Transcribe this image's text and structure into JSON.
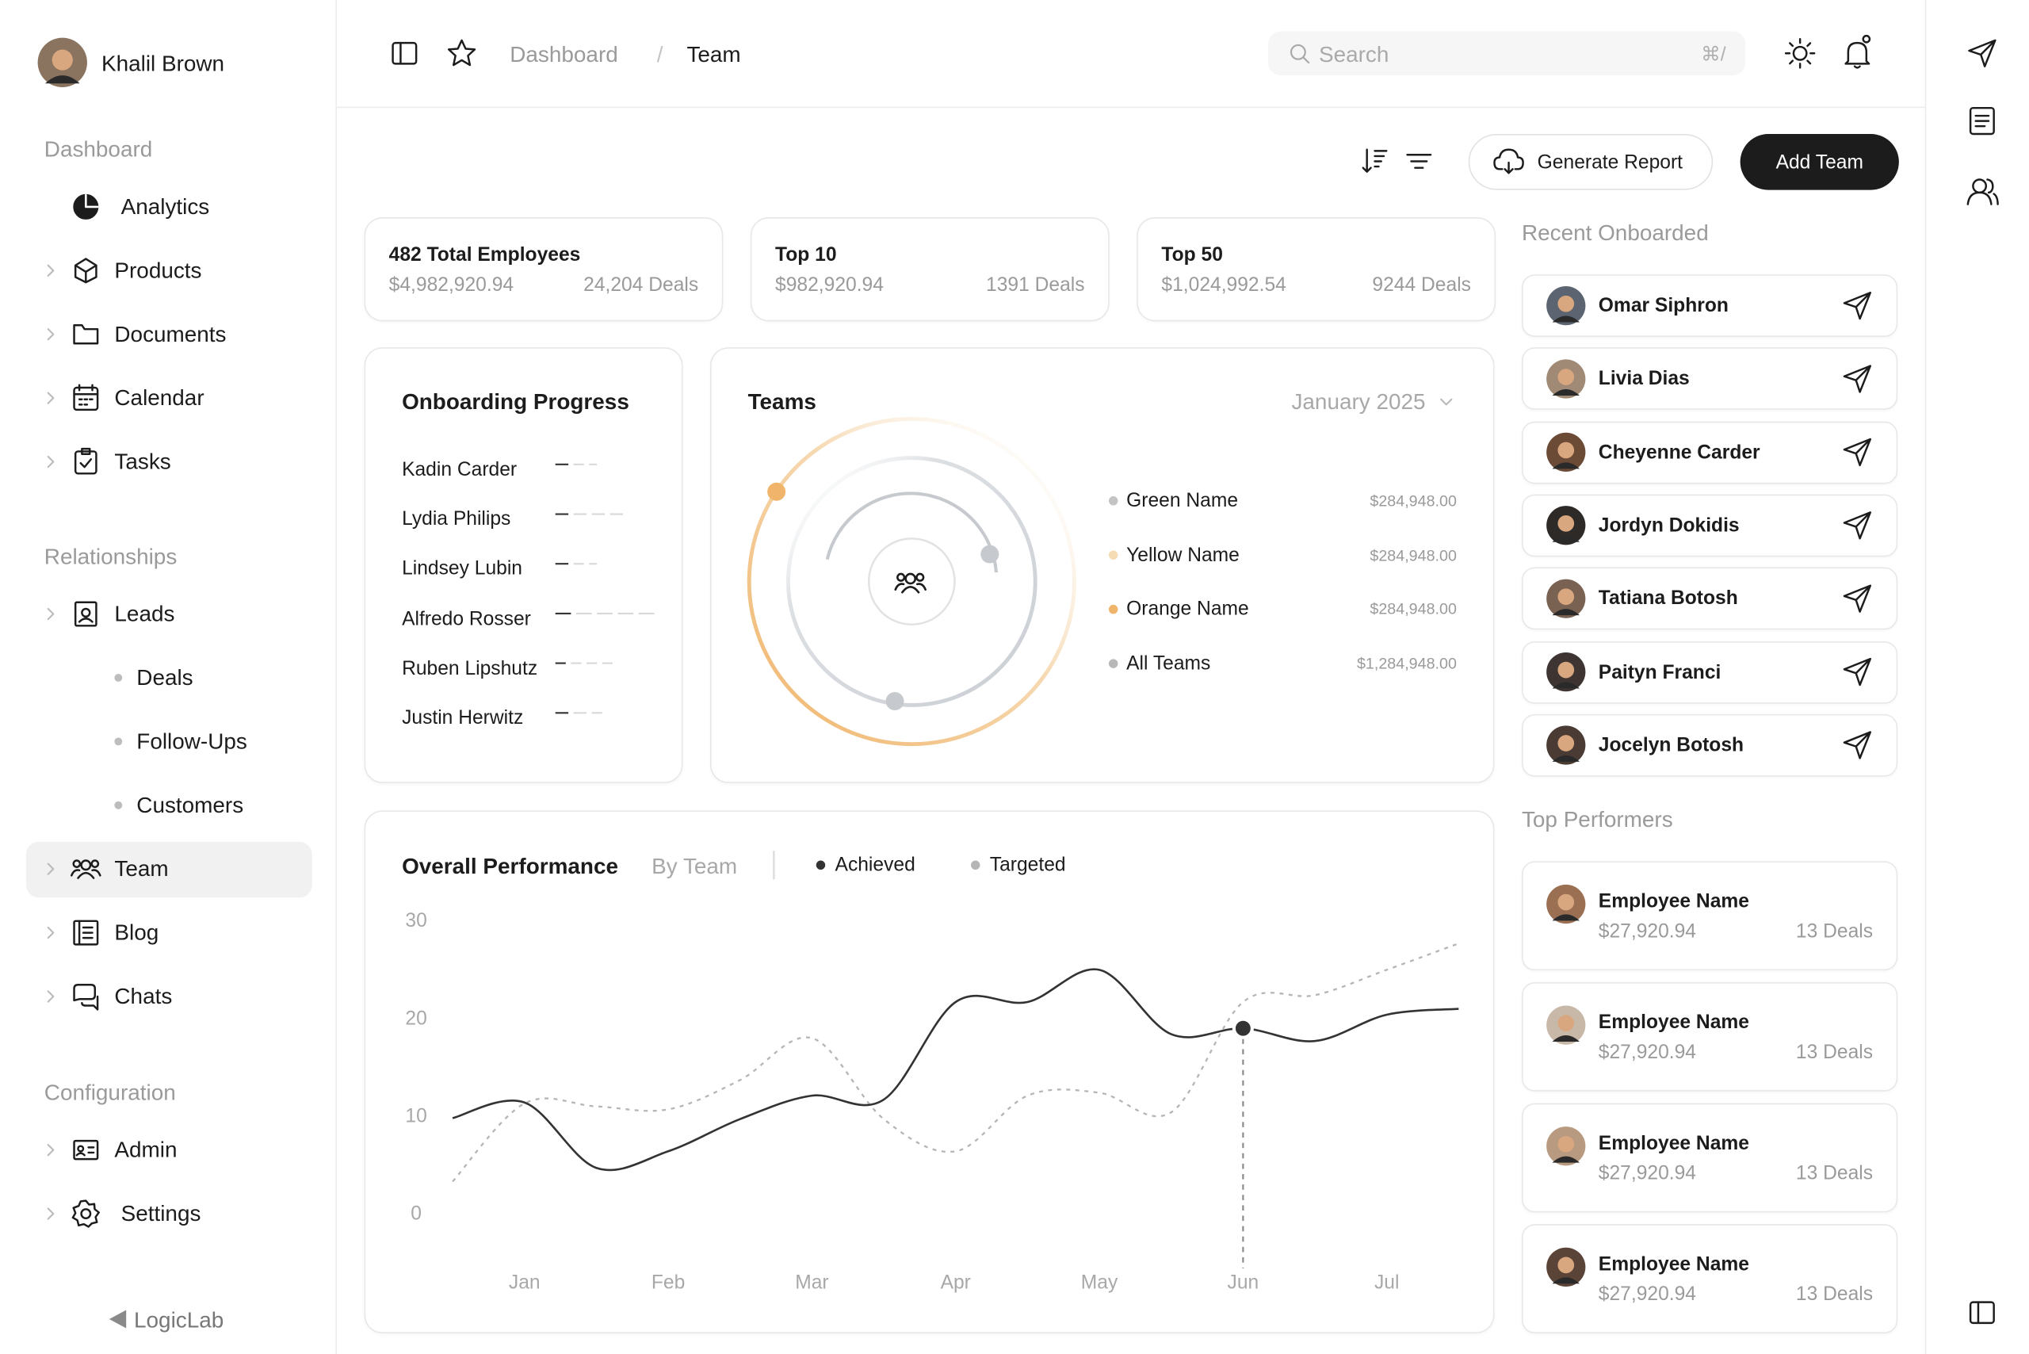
{
  "user": {
    "name": "Khalil Brown"
  },
  "sidebar": {
    "sections": [
      {
        "title": "Dashboard",
        "items": [
          "Analytics",
          "Products",
          "Documents",
          "Calendar",
          "Tasks"
        ]
      },
      {
        "title": "Relationships",
        "items": [
          "Leads",
          "Deals",
          "Follow-Ups",
          "Customers",
          "Team",
          "Blog",
          "Chats"
        ]
      },
      {
        "title": "Configuration",
        "items": [
          "Admin",
          "Settings"
        ]
      }
    ],
    "brand": "LogicLab"
  },
  "header": {
    "breadcrumbs": [
      "Dashboard",
      "/",
      "Team"
    ],
    "search_placeholder": "Search",
    "search_shortcut": "⌘/"
  },
  "toolbar": {
    "buttons": [
      "Generate Report",
      "Add Team"
    ]
  },
  "stats": [
    {
      "title": "482 Total Employees",
      "amount": "$4,982,920.94",
      "deals": "24,204 Deals"
    },
    {
      "title": "Top 10",
      "amount": "$982,920.94",
      "deals": "1391 Deals"
    },
    {
      "title": "Top 50",
      "amount": "$1,024,992.54",
      "deals": "9244 Deals"
    }
  ],
  "onboarding": {
    "title": "Onboarding Progress",
    "people": [
      "Kadin Carder",
      "Lydia Philips",
      "Lindsey Lubin",
      "Alfredo Rosser",
      "Ruben Lipshutz",
      "Justin Herwitz"
    ]
  },
  "teams": {
    "title": "Teams",
    "period": "January 2025",
    "items": [
      {
        "name": "Green Name",
        "amount": "$284,948.00",
        "color": "#c4c4c4"
      },
      {
        "name": "Yellow Name",
        "amount": "$284,948.00",
        "color": "#f6dcb4"
      },
      {
        "name": "Orange Name",
        "amount": "$284,948.00",
        "color": "#f0b46a"
      },
      {
        "name": "All Teams",
        "amount": "$1,284,948.00",
        "color": "#b8b8b8"
      }
    ]
  },
  "chart_data": {
    "type": "line",
    "title": "Overall Performance",
    "subtitle": "By Team",
    "categories": [
      null,
      "Jan",
      null,
      "Feb",
      null,
      "Mar",
      null,
      "Apr",
      null,
      "May",
      null,
      "Jun",
      null,
      "Jul",
      null
    ],
    "series": [
      {
        "name": "Achieved",
        "color": "#333333",
        "dashed": false,
        "values": [
          9.8,
          11.4,
          4.7,
          6.4,
          9.7,
          12.1,
          11.7,
          21.7,
          21.7,
          25,
          18.4,
          19,
          17.7,
          20.4,
          21
        ]
      },
      {
        "name": "Targeted",
        "color": "#b5b5b5",
        "dashed": true,
        "values": [
          3.3,
          11.3,
          11,
          10.7,
          13.7,
          18,
          9.7,
          6.4,
          12.1,
          12.4,
          10.4,
          21.7,
          22.4,
          25,
          27.7
        ]
      }
    ],
    "ylim": [
      0,
      30
    ],
    "yticks": [
      0,
      10,
      20,
      30
    ],
    "grid": false
  },
  "recent_onboarded": {
    "title": "Recent Onboarded",
    "people": [
      "Omar Siphron",
      "Livia Dias",
      "Cheyenne Carder",
      "Jordyn Dokidis",
      "Tatiana Botosh",
      "Paityn Franci",
      "Jocelyn Botosh"
    ]
  },
  "top_performers": {
    "title": "Top Performers",
    "people": [
      {
        "name": "Employee Name",
        "amount": "$27,920.94",
        "deals": "13 Deals"
      },
      {
        "name": "Employee Name",
        "amount": "$27,920.94",
        "deals": "13 Deals"
      },
      {
        "name": "Employee Name",
        "amount": "$27,920.94",
        "deals": "13 Deals"
      },
      {
        "name": "Employee Name",
        "amount": "$27,920.94",
        "deals": "13 Deals"
      }
    ]
  }
}
